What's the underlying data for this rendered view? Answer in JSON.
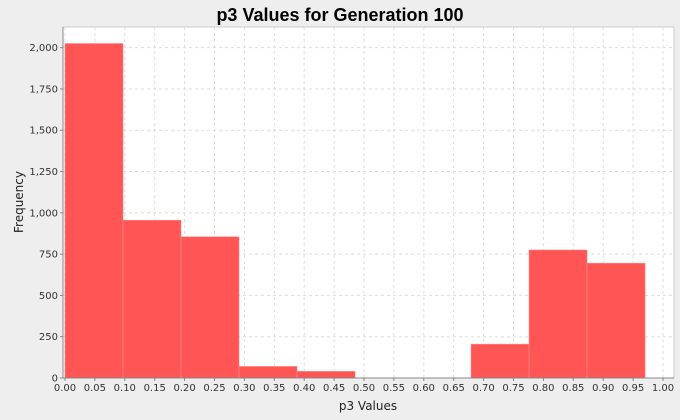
{
  "chart_data": {
    "type": "bar",
    "title": "p3 Values for Generation 100",
    "xlabel": "p3 Values",
    "ylabel": "Frequency",
    "xlim": [
      0,
      1.0
    ],
    "ylim": [
      0,
      2125
    ],
    "grid": true,
    "legend": "none",
    "bar_color": "#ff5555",
    "bins": [
      {
        "x0": 0.0,
        "x1": 0.097,
        "value": 2025
      },
      {
        "x0": 0.097,
        "x1": 0.194,
        "value": 955
      },
      {
        "x0": 0.194,
        "x1": 0.291,
        "value": 855
      },
      {
        "x0": 0.291,
        "x1": 0.388,
        "value": 70
      },
      {
        "x0": 0.388,
        "x1": 0.485,
        "value": 40
      },
      {
        "x0": 0.485,
        "x1": 0.582,
        "value": 0
      },
      {
        "x0": 0.582,
        "x1": 0.679,
        "value": 0
      },
      {
        "x0": 0.679,
        "x1": 0.776,
        "value": 205
      },
      {
        "x0": 0.776,
        "x1": 0.873,
        "value": 775
      },
      {
        "x0": 0.873,
        "x1": 0.97,
        "value": 695
      }
    ],
    "x_ticks": [
      "0.00",
      "0.05",
      "0.10",
      "0.15",
      "0.20",
      "0.25",
      "0.30",
      "0.35",
      "0.40",
      "0.45",
      "0.50",
      "0.55",
      "0.60",
      "0.65",
      "0.70",
      "0.75",
      "0.80",
      "0.85",
      "0.90",
      "0.95",
      "1.00"
    ],
    "y_ticks": [
      {
        "value": 0,
        "label": "0"
      },
      {
        "value": 250,
        "label": "250"
      },
      {
        "value": 500,
        "label": "500"
      },
      {
        "value": 750,
        "label": "750"
      },
      {
        "value": 1000,
        "label": "1,000"
      },
      {
        "value": 1250,
        "label": "1,250"
      },
      {
        "value": 1500,
        "label": "1,500"
      },
      {
        "value": 1750,
        "label": "1,750"
      },
      {
        "value": 2000,
        "label": "2,000"
      }
    ]
  }
}
